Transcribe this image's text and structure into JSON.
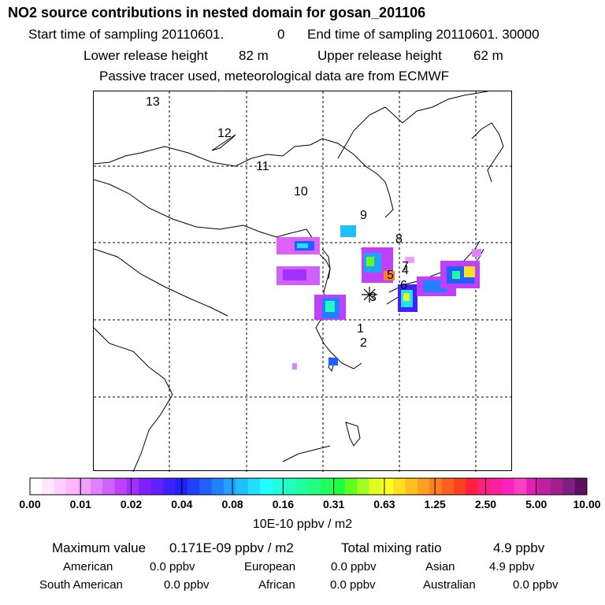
{
  "header": {
    "title": "NO2 source contributions in nested domain for gosan_201106",
    "start_label": "Start time of sampling 20110601.",
    "start_val": "0",
    "end_label": "End time of sampling 20110601. 30000",
    "lower_release": "Lower release height",
    "lower_val": "82 m",
    "upper_release": "Upper release height",
    "upper_val": "62 m",
    "note": "Passive tracer used, meteorological data are from ECMWF"
  },
  "map": {
    "trajectory_labels": [
      "13",
      "12",
      "11",
      "10",
      "9",
      "8",
      "7",
      "4",
      "5",
      "6",
      "3",
      "1",
      "2"
    ],
    "receptor_marker": "asterisk",
    "colors": {
      "coast": "#000000",
      "grid": "#000000"
    }
  },
  "colorbar": {
    "ticks": [
      "0.00",
      "0.01",
      "0.02",
      "0.04",
      "0.08",
      "0.16",
      "0.31",
      "0.63",
      "1.25",
      "2.50",
      "5.00",
      "10.00"
    ],
    "unit": "10E-10 ppbv / m2",
    "colors": [
      "#ffffff",
      "#ffe8ff",
      "#ffd0ff",
      "#ffb8ff",
      "#f0a0ff",
      "#e080ff",
      "#d060ff",
      "#c040ff",
      "#a030ff",
      "#8020ff",
      "#6020ff",
      "#4020ff",
      "#2020ff",
      "#2040ff",
      "#2060ff",
      "#2080ff",
      "#20a0ff",
      "#20c0ff",
      "#20e0ff",
      "#20ffff",
      "#20ffe0",
      "#20ffc0",
      "#20ffa0",
      "#20ff80",
      "#20ff60",
      "#20ff40",
      "#60ff20",
      "#a0ff20",
      "#e0ff20",
      "#ffff20",
      "#ffe020",
      "#ffc020",
      "#ffa020",
      "#ff8020",
      "#ff6020",
      "#ff4020",
      "#ff2040",
      "#ff2080",
      "#ff20a0",
      "#ff20c0",
      "#ff40c0",
      "#e020b0",
      "#c020a0",
      "#a02090",
      "#802080",
      "#601060"
    ]
  },
  "stats": {
    "max_label": "Maximum value",
    "max_val": "0.171E-09 ppbv / m2",
    "total_label": "Total mixing ratio",
    "total_val": "4.9 ppbv",
    "regions": [
      {
        "name": "American",
        "val": "0.0 ppbv"
      },
      {
        "name": "European",
        "val": "0.0 ppbv"
      },
      {
        "name": "Asian",
        "val": "4.9 ppbv"
      },
      {
        "name": "South American",
        "val": "0.0 ppbv"
      },
      {
        "name": "African",
        "val": "0.0 ppbv"
      },
      {
        "name": "Australian",
        "val": "0.0 ppbv"
      }
    ]
  }
}
